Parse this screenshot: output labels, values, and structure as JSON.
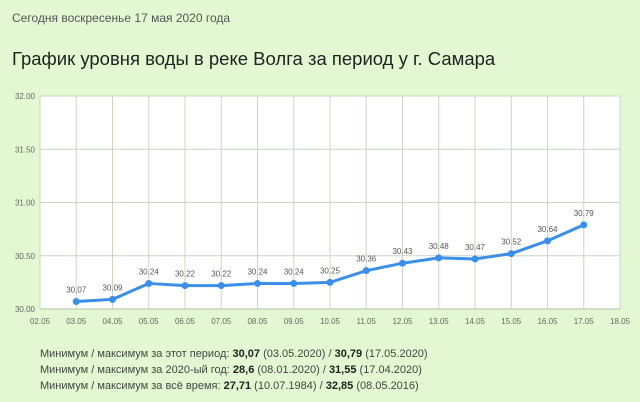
{
  "header": {
    "date_line": "Сегодня воскресенье 17 мая 2020 года",
    "title": "График уровня воды в реке Волга за период у г. Самара"
  },
  "chart_data": {
    "type": "line",
    "x_ticks": [
      "02.05",
      "03.05",
      "04.05",
      "05.05",
      "06.05",
      "07.05",
      "08.05",
      "09.05",
      "10.05",
      "11.05",
      "12.05",
      "13.05",
      "14.05",
      "15.05",
      "16.05",
      "17.05",
      "18.05"
    ],
    "y_ticks": [
      "30.00",
      "30.50",
      "31.00",
      "31.50",
      "32.00"
    ],
    "ylim": [
      30.0,
      32.0
    ],
    "grid": true,
    "series": [
      {
        "x": [
          "03.05",
          "04.05",
          "05.05",
          "06.05",
          "07.05",
          "08.05",
          "09.05",
          "10.05",
          "11.05",
          "12.05",
          "13.05",
          "14.05",
          "15.05",
          "16.05",
          "17.05"
        ],
        "values": [
          30.07,
          30.09,
          30.24,
          30.22,
          30.22,
          30.24,
          30.24,
          30.25,
          30.36,
          30.43,
          30.48,
          30.47,
          30.52,
          30.64,
          30.79
        ],
        "labels": [
          "30.07",
          "30.09",
          "30.24",
          "30.22",
          "30.22",
          "30.24",
          "30.24",
          "30.25",
          "30.36",
          "30.43",
          "30.48",
          "30.47",
          "30.52",
          "30.64",
          "30.79"
        ]
      }
    ],
    "colors": {
      "line": "#3b8fe8",
      "grid": "#c9d8c0",
      "plot_bg": "#ffffff"
    }
  },
  "stats": [
    {
      "prefix": "Минимум / максимум за этот период: ",
      "min": "30,07",
      "min_date": " (03.05.2020) / ",
      "max": "30,79",
      "max_date": " (17.05.2020)"
    },
    {
      "prefix": "Минимум / максимум за 2020-ый год: ",
      "min": "28,6",
      "min_date": " (08.01.2020) / ",
      "max": "31,55",
      "max_date": " (17.04.2020)"
    },
    {
      "prefix": "Минимум / максимум  за  всё  время: ",
      "min": "27,71",
      "min_date": " (10.07.1984) / ",
      "max": "32,85",
      "max_date": " (08.05.2016)"
    }
  ]
}
